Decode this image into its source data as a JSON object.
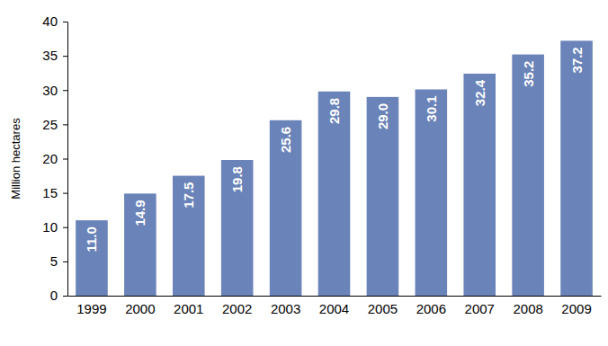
{
  "chart_data": {
    "type": "bar",
    "y_label": "Million hectares",
    "categories": [
      "1999",
      "2000",
      "2001",
      "2002",
      "2003",
      "2004",
      "2005",
      "2006",
      "2007",
      "2008",
      "2009"
    ],
    "values": [
      11.0,
      14.9,
      17.5,
      19.8,
      25.6,
      29.8,
      29.0,
      30.1,
      32.4,
      35.2,
      37.2
    ],
    "value_labels": [
      "11.0",
      "14.9",
      "17.5",
      "19.8",
      "25.6",
      "29.8",
      "29.0",
      "30.1",
      "32.4",
      "35.2",
      "37.2"
    ],
    "color": "#6a83b8",
    "ylim": [
      0,
      40
    ],
    "yticks": [
      0,
      5,
      10,
      15,
      20,
      25,
      30,
      35,
      40
    ],
    "grid": false,
    "data_labels": true
  }
}
